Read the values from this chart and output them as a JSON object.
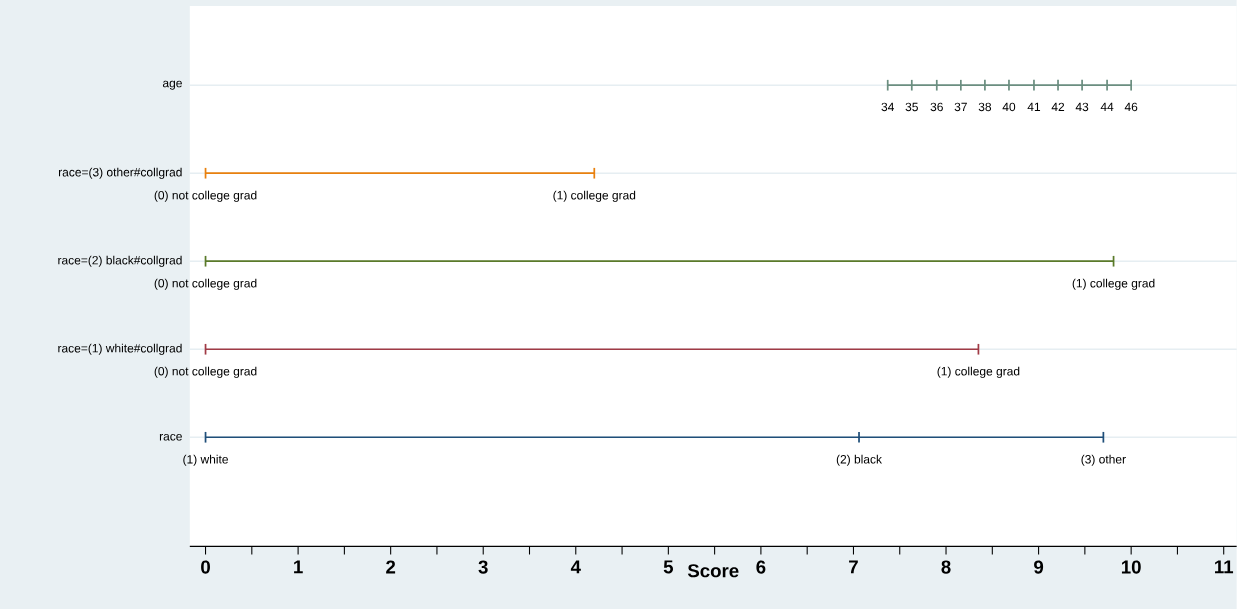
{
  "chart_data": {
    "type": "line",
    "xlabel": "Score",
    "xlim": [
      -0.17,
      11.14
    ],
    "xticks": [
      0,
      {
        "value": 0.5,
        "label": null
      },
      1,
      {
        "value": 1.5,
        "label": null
      },
      2,
      {
        "value": 2.5,
        "label": null
      },
      3,
      {
        "value": 3.5,
        "label": null
      },
      4,
      {
        "value": 4.5,
        "label": null
      },
      5,
      {
        "value": 5.5,
        "label": null
      },
      6,
      {
        "value": 6.5,
        "label": null
      },
      7,
      {
        "value": 7.5,
        "label": null
      },
      8,
      {
        "value": 8.5,
        "label": null
      },
      9,
      {
        "value": 9.5,
        "label": null
      },
      10,
      {
        "value": 10.5,
        "label": null
      },
      11
    ],
    "ylim": [
      -1.24,
      4.9
    ],
    "yticks": [
      {
        "value": 4,
        "label": "age"
      },
      {
        "value": 3,
        "label": "race=(3) other#collgrad"
      },
      {
        "value": 2,
        "label": "race=(2) black#collgrad"
      },
      {
        "value": 1,
        "label": "race=(1) white#collgrad"
      },
      {
        "value": 0,
        "label": "race"
      }
    ],
    "grid": "y",
    "series": [
      {
        "color": "#6b8e80",
        "x": [
          7.37,
          7.63,
          7.9,
          8.16,
          8.42,
          8.68,
          8.95,
          9.21,
          9.47,
          9.74,
          10
        ],
        "values": [
          4,
          4,
          4,
          4,
          4,
          4,
          4,
          4,
          4,
          4,
          4
        ]
      },
      {
        "color": "#e8800e",
        "x": [
          0,
          4.2
        ],
        "values": [
          3,
          3
        ]
      },
      {
        "color": "#5a7a2a",
        "x": [
          0,
          9.81
        ],
        "values": [
          2,
          2
        ]
      },
      {
        "color": "#a03a45",
        "x": [
          0,
          8.35
        ],
        "values": [
          1,
          1
        ]
      },
      {
        "color": "#1f4e79",
        "x": [
          0,
          7.06,
          9.7
        ],
        "values": [
          0,
          0,
          0
        ]
      }
    ],
    "annotations": [
      {
        "text": "34",
        "x": 7.37,
        "y": 4
      },
      {
        "text": "35",
        "x": 7.63,
        "y": 4
      },
      {
        "text": "36",
        "x": 7.9,
        "y": 4
      },
      {
        "text": "37",
        "x": 8.16,
        "y": 4
      },
      {
        "text": "38",
        "x": 8.42,
        "y": 4
      },
      {
        "text": "40",
        "x": 8.68,
        "y": 4
      },
      {
        "text": "41",
        "x": 8.95,
        "y": 4
      },
      {
        "text": "42",
        "x": 9.21,
        "y": 4
      },
      {
        "text": "43",
        "x": 9.47,
        "y": 4
      },
      {
        "text": "44",
        "x": 9.74,
        "y": 4
      },
      {
        "text": "46",
        "x": 10,
        "y": 4
      },
      {
        "text": "(0) not college grad",
        "x": 0,
        "y": 3
      },
      {
        "text": "(1) college grad",
        "x": 4.2,
        "y": 3
      },
      {
        "text": "(0) not college grad",
        "x": 0,
        "y": 2
      },
      {
        "text": "(1) college grad",
        "x": 9.81,
        "y": 2
      },
      {
        "text": "(0) not college grad",
        "x": 0,
        "y": 1
      },
      {
        "text": "(1) college grad",
        "x": 8.35,
        "y": 1
      },
      {
        "text": "(1) white",
        "x": 0,
        "y": 0
      },
      {
        "text": "(2) black",
        "x": 7.06,
        "y": 0
      },
      {
        "text": "(3) other",
        "x": 9.7,
        "y": 0
      }
    ]
  }
}
